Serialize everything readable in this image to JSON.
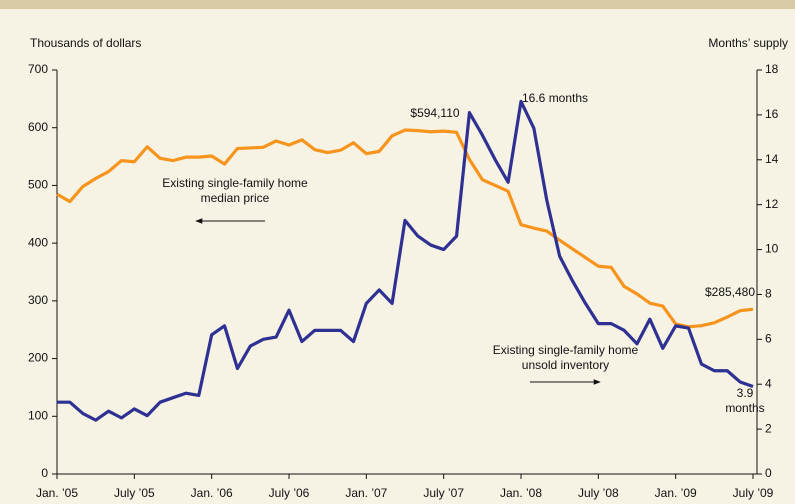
{
  "chart_data": {
    "type": "line",
    "ylabel": "Thousands of dollars",
    "y2label": "Months’ supply",
    "categories": [
      "Jan. ’05",
      null,
      null,
      null,
      null,
      null,
      "July ’05",
      null,
      null,
      null,
      null,
      null,
      "Jan. ’06",
      null,
      null,
      null,
      null,
      null,
      "July ’06",
      null,
      null,
      null,
      null,
      null,
      "Jan. ’07",
      null,
      null,
      null,
      null,
      null,
      "July ’07",
      null,
      null,
      null,
      null,
      null,
      "Jan. ’08",
      null,
      null,
      null,
      null,
      null,
      "July ’08",
      null,
      null,
      null,
      null,
      null,
      "Jan. ’09",
      null,
      null,
      null,
      null,
      null,
      "July ’09"
    ],
    "ylim": [
      0,
      700
    ],
    "yticks": [
      0,
      100,
      200,
      300,
      400,
      500,
      600,
      700
    ],
    "y2lim": [
      0,
      18
    ],
    "y2ticks": [
      0,
      2,
      4,
      6,
      8,
      10,
      12,
      14,
      16,
      18
    ],
    "series": [
      {
        "name": "Existing single-family home median price",
        "color": "#f7941d",
        "values": [
          485,
          472,
          498,
          512,
          524,
          543,
          541,
          567,
          547,
          543,
          549,
          549,
          551,
          537,
          564,
          565,
          566,
          577,
          570,
          579,
          562,
          557,
          561,
          574,
          555,
          559,
          586,
          596,
          595,
          593,
          594.11,
          592,
          545,
          510,
          500,
          490,
          432,
          426,
          421,
          405,
          390,
          375,
          360,
          358,
          325,
          312,
          296,
          291,
          260,
          255,
          257,
          262,
          272,
          283,
          285.48
        ],
        "value_labels": [
          null,
          null,
          null,
          null,
          null,
          null,
          null,
          null,
          null,
          null,
          null,
          null,
          null,
          null,
          null,
          null,
          null,
          null,
          null,
          null,
          null,
          null,
          null,
          null,
          null,
          null,
          null,
          null,
          null,
          null,
          "$594,110",
          null,
          null,
          null,
          null,
          null,
          null,
          null,
          null,
          null,
          null,
          null,
          null,
          null,
          null,
          null,
          null,
          null,
          null,
          null,
          null,
          null,
          null,
          null,
          "$285,480"
        ]
      },
      {
        "name": "Existing single-family home unsold inventory",
        "color": "#2e3192",
        "axis": "y2",
        "values": [
          3.2,
          3.2,
          2.7,
          2.4,
          2.8,
          2.5,
          2.9,
          2.6,
          3.2,
          3.4,
          3.6,
          3.5,
          6.2,
          6.6,
          4.7,
          5.7,
          6.0,
          6.1,
          7.3,
          5.9,
          6.4,
          6.4,
          6.4,
          5.9,
          7.6,
          8.2,
          7.6,
          11.3,
          10.6,
          10.2,
          10.0,
          10.6,
          16.1,
          15.1,
          14.0,
          13.0,
          16.6,
          15.4,
          12.2,
          9.7,
          8.6,
          7.6,
          6.7,
          6.7,
          6.4,
          5.8,
          6.9,
          5.6,
          6.6,
          6.5,
          4.9,
          4.6,
          4.6,
          4.1,
          3.9
        ],
        "value_labels": [
          null,
          null,
          null,
          null,
          null,
          null,
          null,
          null,
          null,
          null,
          null,
          null,
          null,
          null,
          null,
          null,
          null,
          null,
          null,
          null,
          null,
          null,
          null,
          null,
          null,
          null,
          null,
          null,
          null,
          null,
          null,
          null,
          null,
          null,
          null,
          null,
          "16.6 months",
          null,
          null,
          null,
          null,
          null,
          null,
          null,
          null,
          null,
          null,
          null,
          null,
          null,
          null,
          null,
          null,
          null,
          "3.9 months"
        ]
      }
    ]
  }
}
